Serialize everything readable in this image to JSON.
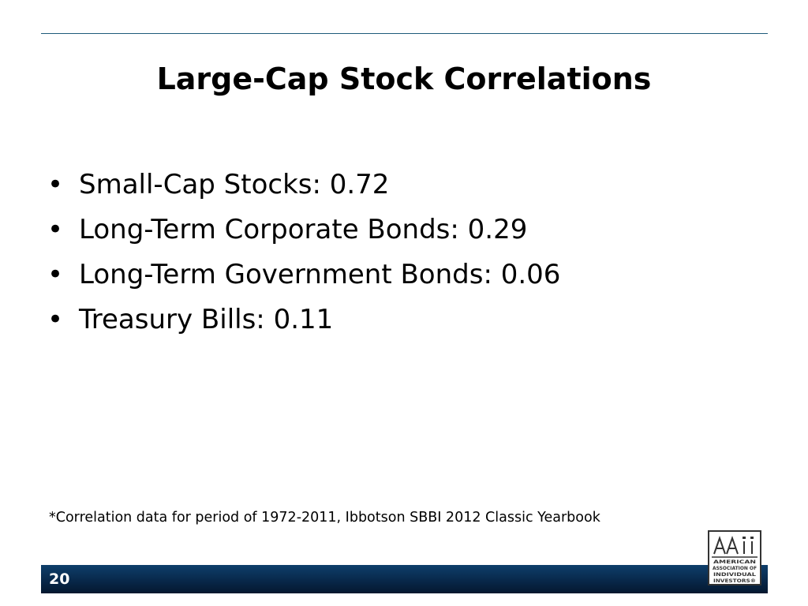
{
  "slide": {
    "title": "Large-Cap Stock Correlations",
    "bullets": [
      {
        "text": "Small-Cap Stocks: 0.72"
      },
      {
        "text": "Long-Term Corporate Bonds: 0.29"
      },
      {
        "text": "Long-Term Government Bonds: 0.06"
      },
      {
        "text": "Treasury Bills: 0.11"
      }
    ],
    "bullet_glyph": "•",
    "footnote": "*Correlation data for period of 1972-2011, Ibbotson SBBI 2012 Classic Yearbook",
    "slide_number": "20"
  },
  "logo": {
    "icon": "aaii-logo",
    "acronym": "AAII",
    "lines": [
      "AMERICAN",
      "ASSOCIATION OF",
      "INDIVIDUAL",
      "INVESTORS®"
    ]
  },
  "colors": {
    "rule": "#1f5b7a",
    "footer_bar": "#08284a",
    "footer_text": "#ffffff"
  }
}
